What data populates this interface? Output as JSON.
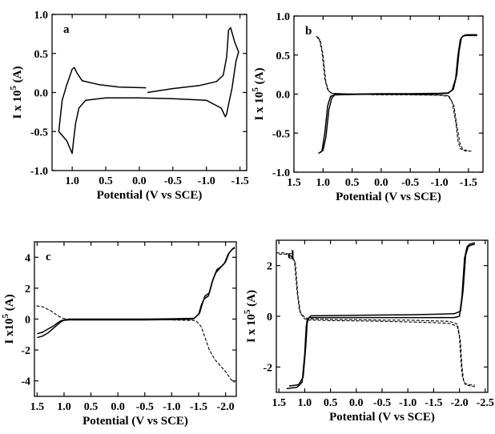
{
  "chart_data": [
    {
      "type": "line",
      "panel_label": "a",
      "xlabel": "Potential (V vs SCE)",
      "ylabel": "I x 10^5 (A)",
      "xlim": [
        1.3,
        -1.6
      ],
      "ylim": [
        -1.0,
        1.0
      ],
      "x_axis_reversed": true,
      "xticks": [
        1.0,
        0.5,
        0.0,
        -0.5,
        -1.0,
        -1.5
      ],
      "xtick_labels": [
        "1.0",
        "0.5",
        "0.0",
        "-0.5",
        "-1.0",
        "-1.5"
      ],
      "yticks": [
        -1.0,
        -0.5,
        0.0,
        0.5,
        1.0
      ],
      "ytick_labels": [
        "-1.0",
        "-0.5",
        "0.0",
        "0.5",
        "1.0"
      ],
      "series": [
        {
          "style": "solid",
          "x": [
            -0.12,
            -0.5,
            -0.9,
            -1.15,
            -1.25,
            -1.3,
            -1.33,
            -1.36,
            -1.42,
            -1.48,
            -1.44,
            -1.38,
            -1.33,
            -1.3,
            -1.28,
            -1.22,
            -1.0,
            -0.5,
            0.0,
            0.5,
            0.8,
            0.9,
            0.95,
            0.98,
            1.0,
            1.03,
            1.08,
            1.15,
            1.2,
            1.15,
            1.08,
            1.03,
            1.0,
            0.97,
            0.93,
            0.85,
            0.6,
            0.3,
            -0.1
          ],
          "y": [
            0.0,
            0.05,
            0.09,
            0.14,
            0.22,
            0.45,
            0.8,
            0.83,
            0.65,
            0.52,
            0.4,
            0.05,
            -0.15,
            -0.28,
            -0.31,
            -0.2,
            -0.1,
            -0.08,
            -0.07,
            -0.07,
            -0.1,
            -0.2,
            -0.4,
            -0.62,
            -0.78,
            -0.72,
            -0.62,
            -0.55,
            -0.5,
            -0.1,
            0.1,
            0.22,
            0.3,
            0.32,
            0.25,
            0.15,
            0.1,
            0.07,
            0.06
          ]
        }
      ]
    },
    {
      "type": "line",
      "panel_label": "b",
      "xlabel": "Potential (V vs SCE)",
      "ylabel": "I x 10^5 (A)",
      "xlim": [
        1.5,
        -1.75
      ],
      "ylim": [
        -1.0,
        1.0
      ],
      "x_axis_reversed": true,
      "xticks": [
        1.5,
        1.0,
        0.5,
        0.0,
        -0.5,
        -1.0,
        -1.5
      ],
      "xtick_labels": [
        "1.5",
        "1.0",
        "0.5",
        "0.0",
        "-0.5",
        "-1.0",
        "-1.5"
      ],
      "yticks": [
        -1.0,
        -0.5,
        0.0,
        0.5,
        1.0
      ],
      "ytick_labels": [
        "-1.0",
        "-0.5",
        "0.0",
        "0.5",
        "1.0"
      ],
      "series": [
        {
          "style": "solid",
          "x": [
            1.05,
            1.0,
            0.95,
            0.9,
            0.85,
            0.8,
            0.5,
            0.0,
            -0.5,
            -1.0,
            -1.15,
            -1.22,
            -1.28,
            -1.32,
            -1.36,
            -1.4,
            -1.45,
            -1.65
          ],
          "y": [
            -0.75,
            -0.72,
            -0.55,
            -0.2,
            -0.05,
            -0.01,
            -0.005,
            0.0,
            0.0,
            0.005,
            0.01,
            0.05,
            0.2,
            0.5,
            0.7,
            0.74,
            0.75,
            0.75
          ]
        },
        {
          "style": "solid",
          "x": [
            1.08,
            1.02,
            0.97,
            0.92,
            0.87,
            0.8,
            0.5,
            0.0,
            -0.5,
            -1.0,
            -1.15,
            -1.24,
            -1.3,
            -1.34,
            -1.38,
            -1.42,
            -1.47,
            -1.65
          ],
          "y": [
            -0.76,
            -0.73,
            -0.5,
            -0.15,
            -0.03,
            -0.005,
            0.0,
            0.005,
            0.005,
            0.01,
            0.015,
            0.06,
            0.25,
            0.55,
            0.72,
            0.75,
            0.76,
            0.76
          ]
        },
        {
          "style": "dashed",
          "x": [
            1.1,
            1.05,
            1.0,
            0.95,
            0.9,
            0.85,
            0.5,
            0.0,
            -0.5,
            -1.0,
            -1.15,
            -1.22,
            -1.28,
            -1.32,
            -1.36,
            -1.42,
            -1.5
          ],
          "y": [
            0.72,
            0.7,
            0.5,
            0.15,
            0.03,
            0.01,
            0.0,
            -0.005,
            -0.005,
            -0.01,
            -0.02,
            -0.1,
            -0.35,
            -0.6,
            -0.7,
            -0.72,
            -0.72
          ]
        },
        {
          "style": "dashed",
          "x": [
            1.12,
            1.07,
            1.02,
            0.97,
            0.92,
            0.85,
            0.5,
            0.0,
            -0.5,
            -1.0,
            -1.17,
            -1.25,
            -1.3,
            -1.35,
            -1.4,
            -1.45,
            -1.55
          ],
          "y": [
            0.74,
            0.72,
            0.55,
            0.2,
            0.05,
            0.01,
            0.0,
            -0.01,
            -0.01,
            -0.015,
            -0.03,
            -0.15,
            -0.4,
            -0.62,
            -0.71,
            -0.73,
            -0.73
          ]
        }
      ]
    },
    {
      "type": "line",
      "panel_label": "c",
      "xlabel": "Potential (V vs SCE)",
      "ylabel": "I x10^5 (A)",
      "xlim": [
        1.55,
        -2.2
      ],
      "ylim": [
        -5.0,
        5.0
      ],
      "x_axis_reversed": true,
      "xticks": [
        1.5,
        1.0,
        0.5,
        0.0,
        -0.5,
        -1.0,
        -1.5,
        -2.0
      ],
      "xtick_labels": [
        "1.5",
        "1.0",
        "0.5",
        "0.0",
        "-0.5",
        "-1.0",
        "-1.5",
        "-2.0"
      ],
      "yticks": [
        -4,
        -2,
        0,
        2,
        4
      ],
      "ytick_labels": [
        "-4",
        "-2",
        "0",
        "2",
        "4"
      ],
      "series": [
        {
          "style": "solid",
          "x": [
            1.5,
            1.4,
            1.3,
            1.2,
            1.1,
            1.05,
            1.0,
            0.9,
            0.5,
            0.0,
            -0.5,
            -1.0,
            -1.4,
            -1.5,
            -1.55,
            -1.6,
            -1.68,
            -1.75,
            -1.82,
            -1.9,
            -1.98,
            -2.05,
            -2.12,
            -2.17
          ],
          "y": [
            -1.2,
            -1.1,
            -0.9,
            -0.6,
            -0.3,
            -0.15,
            -0.08,
            -0.05,
            -0.05,
            -0.05,
            -0.05,
            -0.03,
            0.0,
            0.3,
            0.9,
            1.3,
            1.5,
            2.4,
            3.0,
            3.3,
            3.6,
            4.2,
            4.5,
            4.6
          ]
        },
        {
          "style": "solid",
          "x": [
            1.5,
            1.4,
            1.3,
            1.2,
            1.1,
            1.05,
            1.0,
            0.9,
            0.5,
            0.0,
            -0.5,
            -1.0,
            -1.42,
            -1.52,
            -1.57,
            -1.62,
            -1.7,
            -1.77,
            -1.84,
            -1.92,
            -2.0,
            -2.07,
            -2.13,
            -2.17
          ],
          "y": [
            -0.95,
            -0.85,
            -0.65,
            -0.45,
            -0.2,
            -0.1,
            -0.05,
            0.0,
            0.0,
            0.0,
            0.0,
            0.02,
            0.05,
            0.4,
            1.0,
            1.5,
            1.7,
            2.6,
            3.2,
            3.4,
            3.7,
            4.3,
            4.55,
            4.65
          ]
        },
        {
          "style": "dashed",
          "x": [
            1.6,
            1.4,
            1.25,
            1.15,
            1.08,
            1.02,
            0.95,
            0.5,
            0.0,
            -0.5,
            -1.0,
            -1.45,
            -1.55,
            -1.62,
            -1.7,
            -1.8,
            -1.9,
            -2.0,
            -2.1,
            -2.17
          ],
          "y": [
            0.9,
            0.8,
            0.55,
            0.3,
            0.15,
            0.05,
            0.0,
            -0.02,
            -0.03,
            -0.04,
            -0.05,
            -0.1,
            -0.5,
            -1.2,
            -2.0,
            -2.6,
            -3.0,
            -3.4,
            -3.9,
            -4.1
          ]
        }
      ]
    },
    {
      "type": "line",
      "panel_label": "d",
      "xlabel": "Potential (V vs SCE)",
      "ylabel": "I x 10^5 (A)",
      "xlim": [
        1.55,
        -2.55
      ],
      "ylim": [
        -3.0,
        3.0
      ],
      "x_axis_reversed": true,
      "xticks": [
        1.5,
        1.0,
        0.5,
        0.0,
        -0.5,
        -1.0,
        -1.5,
        -2.0,
        -2.5
      ],
      "xtick_labels": [
        "1.5",
        "1.0",
        "0.5",
        "0.0",
        "-0.5",
        "-1.0",
        "-1.5",
        "-2.0",
        "-2.5"
      ],
      "yticks": [
        -2,
        0,
        2
      ],
      "ytick_labels": [
        "-2",
        "0",
        "2"
      ],
      "series": [
        {
          "style": "solid",
          "x": [
            1.35,
            1.15,
            1.05,
            1.0,
            0.97,
            0.95,
            0.9,
            0.5,
            0.0,
            -0.5,
            -1.0,
            -1.5,
            -1.9,
            -2.0,
            -2.05,
            -2.1,
            -2.15,
            -2.2,
            -2.3
          ],
          "y": [
            -2.85,
            -2.8,
            -2.6,
            -1.5,
            -0.4,
            -0.12,
            -0.05,
            -0.05,
            -0.05,
            -0.05,
            -0.05,
            -0.05,
            -0.05,
            0.0,
            0.8,
            2.3,
            2.75,
            2.85,
            2.9
          ]
        },
        {
          "style": "solid",
          "x": [
            1.3,
            1.12,
            1.03,
            0.98,
            0.95,
            0.92,
            0.88,
            0.5,
            0.0,
            -0.5,
            -1.0,
            -1.5,
            -1.9,
            -2.02,
            -2.07,
            -2.12,
            -2.17,
            -2.22,
            -2.3
          ],
          "y": [
            -2.75,
            -2.7,
            -2.4,
            -1.2,
            -0.25,
            -0.05,
            0.02,
            0.03,
            0.04,
            0.05,
            0.06,
            0.08,
            0.1,
            0.2,
            1.0,
            2.4,
            2.75,
            2.8,
            2.85
          ]
        },
        {
          "style": "dashed",
          "x": [
            1.55,
            1.4,
            1.3,
            1.2,
            1.15,
            1.1,
            1.0,
            0.9,
            0.5,
            0.0,
            -0.5,
            -1.0,
            -1.5,
            -1.8,
            -1.95,
            -2.0,
            -2.03,
            -2.06,
            -2.1,
            -2.2,
            -2.3
          ],
          "y": [
            2.5,
            2.5,
            2.45,
            2.2,
            1.0,
            0.2,
            -0.05,
            -0.1,
            -0.12,
            -0.13,
            -0.15,
            -0.15,
            -0.18,
            -0.2,
            -0.3,
            -0.8,
            -1.8,
            -2.4,
            -2.65,
            -2.7,
            -2.72
          ]
        },
        {
          "style": "dashed",
          "x": [
            1.5,
            1.38,
            1.28,
            1.18,
            1.13,
            1.08,
            1.0,
            0.9,
            0.5,
            0.0,
            -0.5,
            -1.0,
            -1.5,
            -1.8,
            -1.97,
            -2.02,
            -2.05,
            -2.08,
            -2.12,
            -2.22,
            -2.3
          ],
          "y": [
            2.45,
            2.45,
            2.4,
            2.1,
            0.8,
            0.1,
            -0.1,
            -0.15,
            -0.17,
            -0.18,
            -0.2,
            -0.22,
            -0.25,
            -0.28,
            -0.4,
            -1.0,
            -2.0,
            -2.5,
            -2.7,
            -2.75,
            -2.78
          ]
        }
      ]
    }
  ]
}
